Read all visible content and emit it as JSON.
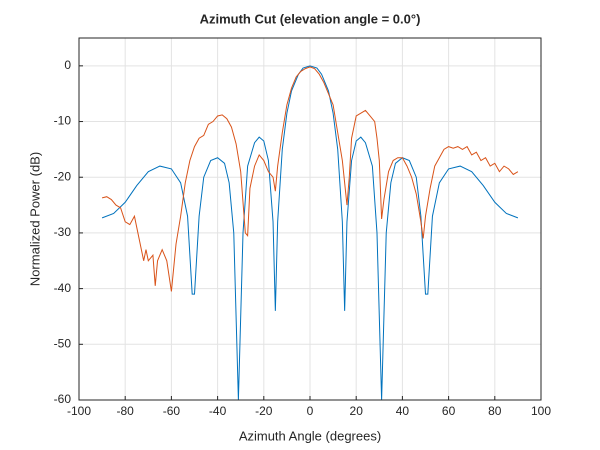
{
  "chart_data": {
    "type": "line",
    "title": "Azimuth Cut (elevation angle = 0.0°)",
    "x_label": "Azimuth Angle (degrees)",
    "y_label": "Normalized Power (dB)",
    "xlim": [
      -100,
      100
    ],
    "xticks": [
      -100,
      -80,
      -60,
      -40,
      -20,
      0,
      20,
      40,
      60,
      80,
      100
    ],
    "ylim": [
      -60,
      5
    ],
    "yticks": [
      -60,
      -50,
      -40,
      -30,
      -20,
      -10,
      0
    ],
    "grid": true,
    "series": [
      {
        "color": "#0072BD",
        "x": [
          -90,
          -85,
          -80,
          -75,
          -70,
          -65,
          -60,
          -56,
          -53,
          -51,
          -50,
          -48,
          -46,
          -43,
          -40,
          -37,
          -35,
          -33,
          -31,
          -29,
          -27,
          -24,
          -22,
          -20,
          -18,
          -16,
          -15,
          -14,
          -12,
          -10,
          -8,
          -5,
          -3,
          0,
          3,
          5,
          8,
          10,
          12,
          14,
          15,
          16,
          18,
          20,
          22,
          24,
          27,
          29,
          31,
          33,
          35,
          37,
          40,
          43,
          46,
          48,
          50,
          51,
          53,
          56,
          60,
          65,
          70,
          75,
          80,
          85,
          90
        ],
        "values": [
          -27.3,
          -26.5,
          -24.5,
          -21.5,
          -19,
          -18,
          -18.5,
          -21,
          -27,
          -41,
          -41,
          -27,
          -20,
          -17,
          -16.5,
          -17.5,
          -21,
          -30,
          -60,
          -30,
          -18,
          -13.8,
          -12.8,
          -13.5,
          -17,
          -28,
          -44,
          -28,
          -15,
          -8.5,
          -4.5,
          -1.5,
          -0.4,
          0,
          -0.4,
          -1.5,
          -4.5,
          -8.5,
          -15,
          -28,
          -44,
          -28,
          -17,
          -13.5,
          -12.8,
          -13.8,
          -18,
          -30,
          -60,
          -30,
          -21,
          -17.5,
          -16.5,
          -17,
          -20,
          -27,
          -41,
          -41,
          -27,
          -21,
          -18.5,
          -18,
          -19,
          -21.5,
          -24.5,
          -26.5,
          -27.3
        ]
      },
      {
        "color": "#D95319",
        "x": [
          -90,
          -88,
          -86,
          -84,
          -82,
          -80,
          -78,
          -76,
          -74,
          -72,
          -71,
          -70,
          -68,
          -67,
          -66,
          -64,
          -62,
          -60,
          -58,
          -56,
          -54,
          -52,
          -50,
          -48,
          -46,
          -44,
          -42,
          -40,
          -38,
          -36,
          -34,
          -32,
          -30,
          -28,
          -27,
          -26,
          -24,
          -22,
          -20,
          -18,
          -16,
          -15,
          -14,
          -12,
          -10,
          -8,
          -6,
          -4,
          -2,
          0,
          2,
          4,
          6,
          8,
          10,
          12,
          14,
          16,
          17,
          18,
          20,
          22,
          24,
          26,
          28,
          29,
          30,
          31,
          32,
          34,
          36,
          38,
          40,
          42,
          44,
          46,
          48,
          49,
          50,
          52,
          54,
          56,
          58,
          60,
          62,
          64,
          66,
          68,
          70,
          72,
          74,
          76,
          78,
          80,
          82,
          84,
          86,
          88,
          90
        ],
        "values": [
          -23.7,
          -23.5,
          -24,
          -25,
          -25.5,
          -28,
          -28.5,
          -27,
          -31,
          -35,
          -33,
          -35,
          -34,
          -39.5,
          -35,
          -33,
          -35,
          -40.5,
          -32,
          -27,
          -21,
          -17,
          -14.5,
          -13,
          -12.5,
          -10.5,
          -10,
          -9,
          -8.8,
          -9.5,
          -11,
          -14,
          -19,
          -30,
          -30.5,
          -22,
          -18,
          -16,
          -17,
          -19,
          -20,
          -22.5,
          -18,
          -12,
          -7,
          -4,
          -2,
          -1,
          -0.5,
          -0.2,
          -0.5,
          -1.5,
          -3,
          -5,
          -7,
          -12,
          -17,
          -25,
          -20,
          -13,
          -9,
          -8.5,
          -8,
          -9,
          -10,
          -13,
          -17,
          -27.5,
          -24,
          -19,
          -17,
          -16.5,
          -16.5,
          -18,
          -20,
          -23,
          -28,
          -31,
          -27,
          -22,
          -18,
          -16.5,
          -15,
          -14.5,
          -14.8,
          -14.5,
          -15,
          -14.5,
          -16,
          -15.5,
          -17,
          -16.5,
          -18,
          -17.5,
          -19,
          -18,
          -18.5,
          -19.5,
          -19
        ]
      }
    ]
  }
}
